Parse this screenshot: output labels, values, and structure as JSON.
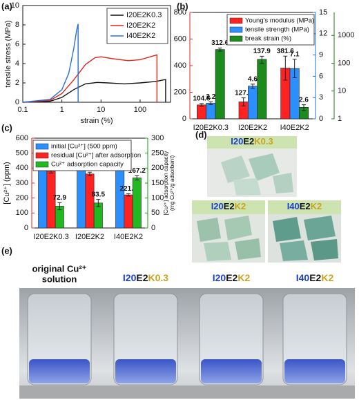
{
  "chart_data": [
    {
      "type": "line",
      "panel_label": "(a)",
      "xlabel": "strain (%)",
      "ylabel": "tensile stress (MPa)",
      "xscale": "log",
      "xlim": [
        0.1,
        600
      ],
      "xticks": [
        0.1,
        1,
        10,
        100
      ],
      "ylim": [
        0,
        10
      ],
      "yticks": [
        0,
        2,
        4,
        6,
        8,
        10
      ],
      "legend": "upper right",
      "series": [
        {
          "name": "I20E2K0.3",
          "color": "#111111",
          "x": [
            0.1,
            0.5,
            1,
            2,
            4,
            8,
            15,
            40,
            100,
            250,
            450,
            450
          ],
          "values": [
            0,
            0.1,
            0.5,
            1.3,
            1.9,
            2.05,
            2.0,
            1.9,
            2.0,
            2.15,
            2.35,
            0
          ]
        },
        {
          "name": "I20E2K2",
          "color": "#e3241c",
          "x": [
            0.1,
            0.5,
            1,
            2,
            4,
            7,
            10,
            20,
            50,
            100,
            270,
            270
          ],
          "values": [
            0,
            0.2,
            0.9,
            2.3,
            3.9,
            4.6,
            4.7,
            4.5,
            4.3,
            4.4,
            4.9,
            0
          ]
        },
        {
          "name": "I40E2K2",
          "color": "#2a6fd6",
          "x": [
            0.1,
            0.5,
            1,
            1.5,
            2,
            2.4,
            2.6,
            2.6
          ],
          "values": [
            0,
            0.3,
            1.3,
            3,
            5.5,
            7.5,
            8.1,
            0
          ]
        }
      ]
    },
    {
      "type": "bar",
      "panel_label": "(b)",
      "categories": [
        "I20E2K0.3",
        "I20E2K2",
        "I40E2K2"
      ],
      "ylim": [
        0,
        800
      ],
      "yticks": [
        0,
        200,
        400,
        600,
        800
      ],
      "y_color": "#e3241c",
      "y2lim": [
        0,
        15
      ],
      "y2ticks": [
        0,
        3,
        6,
        9,
        12,
        15
      ],
      "y2_color": "#1f6fd1",
      "y3lim": [
        1,
        6700
      ],
      "y3ticks": [
        1,
        10,
        100,
        1000
      ],
      "y3scale": "log",
      "y3_color": "#1a7a1a",
      "legend": "upper right",
      "series": [
        {
          "name": "Young's modulus (MPa)",
          "color": "#ff2222",
          "label_color": "#e3241c",
          "values": [
            104.8,
            127.6,
            381.6
          ],
          "errors": [
            10,
            30,
            90
          ]
        },
        {
          "name": "tensile strength (MPa)",
          "color": "#2b8fff",
          "label_color": "#1f5fc0",
          "axis": "y2",
          "values": [
            2.2,
            4.6,
            7.1
          ],
          "errors": [
            0.2,
            0.3,
            1.3
          ]
        },
        {
          "name": "break strain (%)",
          "color": "#1d8a1d",
          "label_color": "#1a6e1a",
          "axis": "y3",
          "values": [
            312.6,
            137.9,
            2.6
          ],
          "errors": [
            40,
            40,
            0.6
          ]
        }
      ]
    },
    {
      "type": "bar",
      "panel_label": "(c)",
      "categories": [
        "I20E2K0.3",
        "I20E2K2",
        "I40E2K2"
      ],
      "ylabel": "[Cu²⁺] (ppm)",
      "y2label": [
        "[Cu²⁺] adsorption capacity",
        "(mg Cu²⁺/g adsorbent)"
      ],
      "ylim": [
        0,
        600
      ],
      "yticks": [
        0,
        100,
        200,
        300,
        400,
        500,
        600
      ],
      "y_color": "#e3241c",
      "y2lim": [
        0,
        300
      ],
      "y2ticks": [
        0,
        50,
        100,
        150,
        200,
        250,
        300
      ],
      "y2_color": "#1a9a1a",
      "legend": "upper left",
      "series": [
        {
          "name": "initial [Cu²⁺] (500 ppm)",
          "color": "#2b8fff",
          "label_color": "#1f5fc0",
          "values": [
            500,
            500,
            500
          ]
        },
        {
          "name": "residual [Cu²⁺] after adsorption",
          "color": "#ff2222",
          "label_color": "#e3241c",
          "values": [
            378.5,
            360.8,
            221.2
          ],
          "errors": [
            12,
            12,
            8
          ]
        },
        {
          "name": "Cu²⁺ adsorption capacity",
          "color": "#22b822",
          "label_color": "#1a7a1a",
          "axis": "y2",
          "values": [
            72.9,
            83.5,
            167.2
          ],
          "errors": [
            12,
            12,
            7
          ]
        }
      ]
    }
  ],
  "photos": {
    "part_colors": [
      "#1c3fd0",
      "#111111",
      "#c9a21e"
    ],
    "d": {
      "panel_label": "(d)",
      "samples": [
        [
          "I20",
          "E2",
          "K0.3"
        ],
        [
          "I20",
          "E2",
          "K2"
        ],
        [
          "I40",
          "E2",
          "K2"
        ]
      ]
    },
    "e": {
      "panel_label": "(e)",
      "reference": [
        "original Cu²⁺",
        "solution"
      ],
      "reference_color": "#e3241c",
      "samples": [
        [
          "I20",
          "E2",
          "K0.3"
        ],
        [
          "I20",
          "E2",
          "K2"
        ],
        [
          "I40",
          "E2",
          "K2"
        ]
      ]
    }
  }
}
